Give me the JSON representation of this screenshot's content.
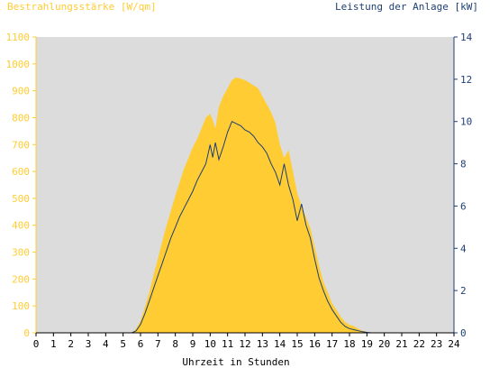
{
  "colors": {
    "plot_background": "#dcdcdc",
    "irradiance": "#ffcc33",
    "power": "#1f3f74",
    "left_axis": "#ffcc33",
    "right_axis": "#1f3f74",
    "x_axis": "#000000"
  },
  "chart_data": {
    "type": "area",
    "title": "",
    "ylabel_left": "Bestrahlungsstärke [W/qm]",
    "ylabel_right": "Leistung der Anlage [kW]",
    "xlabel": "Uhrzeit in Stunden",
    "xlim": [
      0,
      24
    ],
    "ylim_left": [
      0,
      1100
    ],
    "ylim_right": [
      0,
      14
    ],
    "x_ticks": [
      "0",
      "1",
      "2",
      "3",
      "4",
      "5",
      "6",
      "7",
      "8",
      "9",
      "10",
      "11",
      "12",
      "13",
      "14",
      "15",
      "16",
      "17",
      "18",
      "19",
      "20",
      "21",
      "22",
      "23",
      "24"
    ],
    "y_ticks_left": [
      "0",
      "100",
      "200",
      "300",
      "400",
      "500",
      "600",
      "700",
      "800",
      "900",
      "1000",
      "1100"
    ],
    "y_ticks_right": [
      "0",
      "2",
      "4",
      "6",
      "8",
      "10",
      "12",
      "14"
    ],
    "grid": false,
    "legend": "none",
    "series": [
      {
        "name": "Bestrahlungsstärke [W/qm]",
        "axis": "left",
        "style": "filled-area",
        "x": [
          0,
          5.5,
          5.75,
          6,
          6.25,
          6.5,
          6.75,
          7,
          7.25,
          7.5,
          7.75,
          8,
          8.25,
          8.5,
          8.75,
          9,
          9.25,
          9.5,
          9.75,
          10,
          10.15,
          10.3,
          10.5,
          10.75,
          11,
          11.25,
          11.5,
          11.75,
          12,
          12.25,
          12.5,
          12.75,
          13,
          13.25,
          13.5,
          13.75,
          14,
          14.25,
          14.5,
          14.75,
          15,
          15.25,
          15.5,
          15.75,
          16,
          16.25,
          16.5,
          16.75,
          17,
          17.25,
          17.5,
          17.75,
          18,
          18.25,
          18.5,
          18.75,
          19,
          19.25,
          24
        ],
        "values": [
          0,
          0,
          15,
          45,
          95,
          150,
          215,
          275,
          340,
          400,
          455,
          510,
          560,
          610,
          650,
          690,
          720,
          760,
          800,
          815,
          790,
          760,
          840,
          880,
          910,
          940,
          950,
          945,
          940,
          930,
          920,
          910,
          880,
          850,
          820,
          780,
          700,
          650,
          680,
          600,
          520,
          470,
          430,
          390,
          320,
          250,
          190,
          150,
          110,
          85,
          60,
          40,
          30,
          25,
          15,
          8,
          3,
          0,
          0
        ]
      },
      {
        "name": "Leistung der Anlage [kW]",
        "axis": "right",
        "style": "line",
        "x": [
          0,
          5.5,
          5.75,
          6,
          6.25,
          6.5,
          6.75,
          7,
          7.25,
          7.5,
          7.75,
          8,
          8.25,
          8.5,
          8.75,
          9,
          9.25,
          9.5,
          9.75,
          10,
          10.15,
          10.3,
          10.5,
          10.75,
          11,
          11.25,
          11.5,
          11.75,
          12,
          12.25,
          12.5,
          12.75,
          13,
          13.25,
          13.5,
          13.75,
          14,
          14.25,
          14.5,
          14.75,
          15,
          15.25,
          15.5,
          15.75,
          16,
          16.25,
          16.5,
          16.75,
          17,
          17.25,
          17.5,
          17.75,
          18,
          18.25,
          18.5,
          18.75,
          19,
          19.25,
          24
        ],
        "values": [
          0,
          0,
          0.1,
          0.4,
          0.9,
          1.5,
          2.1,
          2.7,
          3.3,
          3.9,
          4.5,
          5.0,
          5.5,
          5.9,
          6.3,
          6.7,
          7.2,
          7.6,
          8.0,
          8.9,
          8.3,
          9.0,
          8.2,
          8.8,
          9.5,
          10.0,
          9.9,
          9.8,
          9.6,
          9.5,
          9.3,
          9.0,
          8.8,
          8.5,
          8.0,
          7.6,
          7.0,
          8.0,
          7.0,
          6.3,
          5.3,
          6.1,
          5.1,
          4.5,
          3.5,
          2.6,
          2.0,
          1.5,
          1.1,
          0.8,
          0.5,
          0.3,
          0.2,
          0.15,
          0.1,
          0.05,
          0.02,
          0,
          0
        ]
      }
    ]
  }
}
